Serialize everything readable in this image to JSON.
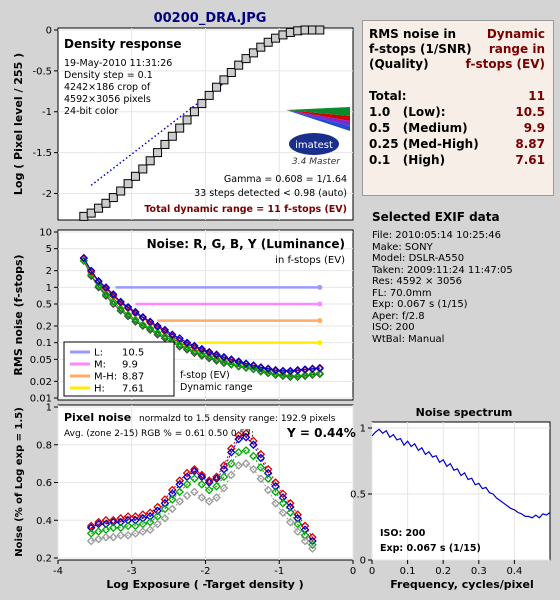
{
  "file_title": "00200_DRA.JPG",
  "summary": {
    "header_left": [
      "RMS noise in",
      "f-stops (1/SNR)",
      "(Quality)"
    ],
    "header_right": [
      "Dynamic",
      "range in",
      "f-stops (EV)"
    ],
    "rows": [
      {
        "label": "Total:",
        "value": "11"
      },
      {
        "label": "1.0   (Low):",
        "value": "10.5"
      },
      {
        "label": "0.5   (Medium)",
        "value": "9.9"
      },
      {
        "label": "0.25 (Med-High)",
        "value": "8.87"
      },
      {
        "label": "0.1   (High)",
        "value": "7.61"
      }
    ]
  },
  "exif": {
    "title": "Selected EXIF data",
    "lines": [
      "File:  2010:05:14 10:25:46",
      "Make:  SONY",
      "Model: DSLR-A550",
      "Taken: 2009:11:24 11:47:05",
      "Res:   4592 × 3056",
      "FL:  70.0mm",
      "Exp:  0.067 s  (1/15)",
      "Aper:  f/2.8",
      "ISO:  200",
      "WtBal: Manual"
    ]
  },
  "colors": {
    "panel_bg": "#ffffff",
    "luminance": "#444444",
    "red": "#dd0000",
    "green": "#00aa00",
    "blue": "#0000cc",
    "gray": "#999999",
    "low": "#9999ff",
    "medium": "#ff88ff",
    "medhigh": "#ffaa66",
    "high": "#ffee00",
    "title_red": "#7a0000",
    "title_navy": "#000080"
  },
  "chart_data": [
    {
      "type": "line",
      "title": "Density response",
      "ylabel": "Log ( Pixel level / 255 )",
      "ylim": [
        -2.3,
        0
      ],
      "xlim": [
        -4,
        0
      ],
      "yticks": [
        "0",
        "-0.5",
        "-1",
        "-1.5",
        "-2"
      ],
      "ytick_values": [
        0,
        -0.5,
        -1,
        -1.5,
        -2
      ],
      "info_lines": [
        "19-May-2010 11:31:26",
        "Density step = 0.1",
        "4242×186 crop of",
        "4592×3056 pixels",
        "24-bit color"
      ],
      "logo_text": "imatest",
      "logo_sub": "3.4  Master",
      "gamma_text": "Gamma = 0.608 = 1/1.64",
      "steps_text": "33 steps detected < 0.98 (auto)",
      "dr_text": "Total dynamic range = 11 f-stops (EV)",
      "series": [
        {
          "x": [
            -3.65,
            -3.55,
            -3.45,
            -3.35,
            -3.25,
            -3.15,
            -3.05,
            -2.95,
            -2.85,
            -2.75,
            -2.65,
            -2.55,
            -2.45,
            -2.35,
            -2.25,
            -2.15,
            -2.05,
            -1.95,
            -1.85,
            -1.75,
            -1.65,
            -1.55,
            -1.45,
            -1.35,
            -1.25,
            -1.15,
            -1.05,
            -0.95,
            -0.85,
            -0.75,
            -0.65,
            -0.55,
            -0.45
          ],
          "y": [
            -2.28,
            -2.24,
            -2.18,
            -2.12,
            -2.05,
            -1.97,
            -1.88,
            -1.79,
            -1.7,
            -1.6,
            -1.5,
            -1.4,
            -1.3,
            -1.2,
            -1.1,
            -1.0,
            -0.9,
            -0.8,
            -0.7,
            -0.61,
            -0.52,
            -0.43,
            -0.35,
            -0.28,
            -0.21,
            -0.15,
            -0.1,
            -0.06,
            -0.03,
            -0.01,
            0,
            0,
            0
          ]
        }
      ],
      "fit_line": {
        "x": [
          -3.55,
          -1.75
        ],
        "y": [
          -1.9,
          -0.65
        ]
      }
    },
    {
      "type": "line",
      "title": "Noise: R, G, B, Y (Luminance)",
      "subtitle": "in f-stops (EV)",
      "ylabel": "RMS noise (f-stops)",
      "ylim": [
        0.01,
        10
      ],
      "log_y": true,
      "yticks": [
        "10",
        "5",
        "2",
        "1",
        "0.5",
        "0.2",
        "0.1",
        "0.05",
        "0.02",
        "0.01"
      ],
      "ytick_values": [
        10,
        5,
        2,
        1,
        0.5,
        0.2,
        0.1,
        0.05,
        0.02,
        0.01
      ],
      "legend": [
        {
          "label": "L:",
          "value": "10.5"
        },
        {
          "label": "M:",
          "value": "9.9"
        },
        {
          "label": "M-H:",
          "value": "8.87"
        },
        {
          "label": "H:",
          "value": "7.61"
        }
      ],
      "thresholds": [
        1.0,
        0.5,
        0.25,
        0.1
      ],
      "threshold_starts": [
        -3.22,
        -2.95,
        -2.65,
        -2.1
      ],
      "annotations": [
        "f-stop (EV)",
        "Dynamic range"
      ],
      "x": [
        -3.65,
        -3.55,
        -3.45,
        -3.35,
        -3.25,
        -3.15,
        -3.05,
        -2.95,
        -2.85,
        -2.75,
        -2.65,
        -2.55,
        -2.45,
        -2.35,
        -2.25,
        -2.15,
        -2.05,
        -1.95,
        -1.85,
        -1.75,
        -1.65,
        -1.55,
        -1.45,
        -1.35,
        -1.25,
        -1.15,
        -1.05,
        -0.95,
        -0.85,
        -0.75,
        -0.65,
        -0.55,
        -0.45
      ],
      "series": [
        {
          "name": "Y",
          "values": [
            3.0,
            1.6,
            1.0,
            0.7,
            0.5,
            0.38,
            0.3,
            0.24,
            0.2,
            0.17,
            0.14,
            0.12,
            0.1,
            0.085,
            0.075,
            0.065,
            0.058,
            0.052,
            0.047,
            0.043,
            0.04,
            0.037,
            0.035,
            0.033,
            0.03,
            0.028,
            0.026,
            0.025,
            0.024,
            0.024,
            0.025,
            0.026,
            0.027
          ]
        },
        {
          "name": "R",
          "values": [
            3.3,
            1.9,
            1.25,
            0.95,
            0.7,
            0.52,
            0.42,
            0.34,
            0.28,
            0.23,
            0.19,
            0.16,
            0.13,
            0.11,
            0.095,
            0.083,
            0.073,
            0.065,
            0.058,
            0.053,
            0.048,
            0.044,
            0.041,
            0.038,
            0.035,
            0.033,
            0.031,
            0.03,
            0.03,
            0.031,
            0.032,
            0.033,
            0.034
          ]
        },
        {
          "name": "G",
          "values": [
            3.0,
            1.7,
            1.05,
            0.75,
            0.55,
            0.41,
            0.32,
            0.26,
            0.21,
            0.18,
            0.15,
            0.13,
            0.11,
            0.092,
            0.08,
            0.07,
            0.062,
            0.055,
            0.05,
            0.045,
            0.041,
            0.038,
            0.036,
            0.034,
            0.031,
            0.029,
            0.027,
            0.026,
            0.025,
            0.025,
            0.026,
            0.027,
            0.028
          ]
        },
        {
          "name": "B",
          "values": [
            3.4,
            2.0,
            1.3,
            1.0,
            0.75,
            0.55,
            0.44,
            0.36,
            0.29,
            0.24,
            0.2,
            0.17,
            0.14,
            0.12,
            0.1,
            0.088,
            0.077,
            0.068,
            0.061,
            0.055,
            0.05,
            0.046,
            0.042,
            0.039,
            0.036,
            0.034,
            0.032,
            0.031,
            0.031,
            0.032,
            0.033,
            0.034,
            0.035
          ]
        }
      ]
    },
    {
      "type": "line",
      "title": "Pixel noise",
      "subtitle": "normalzd to 1.5 density range: 192.9 pixels",
      "avg_text": "Avg. (zone 2-15) RGB % = 0.61  0.50  0.57;",
      "y_text": "Y = 0.44%",
      "ylabel": "Noise (% of Log exp = 1.5)",
      "xlabel": "Log Exposure ( -Target density )",
      "ylim": [
        0.2,
        1.0
      ],
      "xlim": [
        -4,
        0
      ],
      "yticks": [
        "1",
        "0.8",
        "0.6",
        "0.4",
        "0.2"
      ],
      "ytick_values": [
        1,
        0.8,
        0.6,
        0.4,
        0.2
      ],
      "xticks": [
        "-4",
        "-3",
        "-2",
        "-1",
        "0"
      ],
      "xtick_values": [
        -4,
        -3,
        -2,
        -1,
        0
      ],
      "x": [
        -3.55,
        -3.45,
        -3.35,
        -3.25,
        -3.15,
        -3.05,
        -2.95,
        -2.85,
        -2.75,
        -2.65,
        -2.55,
        -2.45,
        -2.35,
        -2.25,
        -2.15,
        -2.05,
        -1.95,
        -1.85,
        -1.75,
        -1.65,
        -1.55,
        -1.45,
        -1.35,
        -1.25,
        -1.15,
        -1.05,
        -0.95,
        -0.85,
        -0.75,
        -0.65,
        -0.55
      ],
      "series": [
        {
          "name": "R",
          "values": [
            0.37,
            0.39,
            0.4,
            0.4,
            0.41,
            0.42,
            0.42,
            0.43,
            0.44,
            0.47,
            0.51,
            0.56,
            0.61,
            0.65,
            0.67,
            0.64,
            0.61,
            0.63,
            0.69,
            0.78,
            0.85,
            0.86,
            0.82,
            0.75,
            0.67,
            0.6,
            0.54,
            0.49,
            0.43,
            0.37,
            0.31
          ]
        },
        {
          "name": "B",
          "values": [
            0.36,
            0.38,
            0.38,
            0.39,
            0.39,
            0.4,
            0.4,
            0.41,
            0.42,
            0.45,
            0.49,
            0.54,
            0.59,
            0.63,
            0.66,
            0.63,
            0.6,
            0.62,
            0.67,
            0.76,
            0.83,
            0.84,
            0.8,
            0.73,
            0.65,
            0.58,
            0.52,
            0.47,
            0.41,
            0.35,
            0.29
          ]
        },
        {
          "name": "G",
          "values": [
            0.33,
            0.34,
            0.35,
            0.36,
            0.36,
            0.37,
            0.37,
            0.38,
            0.39,
            0.42,
            0.46,
            0.51,
            0.55,
            0.59,
            0.62,
            0.59,
            0.56,
            0.58,
            0.63,
            0.7,
            0.76,
            0.77,
            0.74,
            0.68,
            0.62,
            0.55,
            0.49,
            0.44,
            0.38,
            0.32,
            0.27
          ]
        },
        {
          "name": "Y",
          "values": [
            0.29,
            0.3,
            0.31,
            0.31,
            0.32,
            0.32,
            0.33,
            0.34,
            0.35,
            0.38,
            0.41,
            0.46,
            0.5,
            0.53,
            0.55,
            0.52,
            0.5,
            0.52,
            0.57,
            0.64,
            0.69,
            0.7,
            0.67,
            0.62,
            0.56,
            0.49,
            0.44,
            0.39,
            0.34,
            0.29,
            0.25
          ]
        }
      ]
    },
    {
      "type": "line",
      "title": "Noise spectrum",
      "xlabel": "Frequency, cycles/pixel",
      "ylim": [
        0,
        1
      ],
      "xlim": [
        0,
        0.5
      ],
      "yticks": [
        "1",
        "0.5",
        "0"
      ],
      "ytick_values": [
        1,
        0.5,
        0
      ],
      "xticks": [
        "0",
        "0.1",
        "0.2",
        "0.3",
        "0.4"
      ],
      "xtick_values": [
        0,
        0.1,
        0.2,
        0.3,
        0.4
      ],
      "iso_text": "ISO:  200",
      "exp_text": "Exp:  0.067 s  (1/15)",
      "series": [
        {
          "x": [
            0,
            0.01,
            0.02,
            0.03,
            0.04,
            0.05,
            0.06,
            0.07,
            0.08,
            0.09,
            0.1,
            0.11,
            0.12,
            0.13,
            0.14,
            0.15,
            0.16,
            0.17,
            0.18,
            0.19,
            0.2,
            0.21,
            0.22,
            0.23,
            0.24,
            0.25,
            0.26,
            0.27,
            0.28,
            0.29,
            0.3,
            0.31,
            0.32,
            0.33,
            0.34,
            0.35,
            0.36,
            0.37,
            0.38,
            0.39,
            0.4,
            0.41,
            0.42,
            0.43,
            0.44,
            0.45,
            0.46,
            0.47,
            0.48,
            0.49,
            0.5
          ],
          "y": [
            0.94,
            0.97,
            0.99,
            0.96,
            0.98,
            0.93,
            0.95,
            0.91,
            0.92,
            0.87,
            0.9,
            0.86,
            0.88,
            0.83,
            0.85,
            0.8,
            0.82,
            0.78,
            0.79,
            0.74,
            0.76,
            0.71,
            0.73,
            0.68,
            0.69,
            0.64,
            0.66,
            0.61,
            0.62,
            0.57,
            0.58,
            0.54,
            0.55,
            0.51,
            0.5,
            0.47,
            0.45,
            0.43,
            0.41,
            0.39,
            0.38,
            0.36,
            0.35,
            0.33,
            0.33,
            0.32,
            0.34,
            0.32,
            0.35,
            0.34,
            0.36
          ]
        }
      ]
    }
  ]
}
